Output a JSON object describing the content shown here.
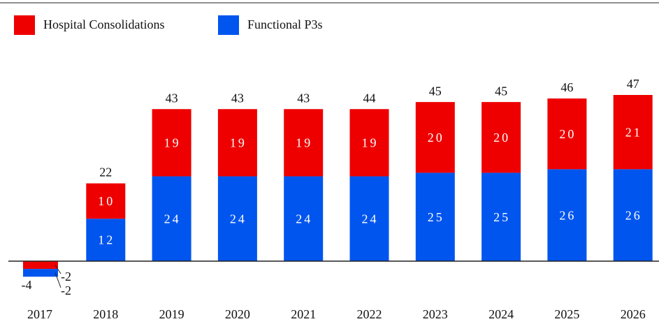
{
  "chart_data": {
    "type": "stacked-bar",
    "categories": [
      "2017",
      "2018",
      "2019",
      "2020",
      "2021",
      "2022",
      "2023",
      "2024",
      "2025",
      "2026"
    ],
    "series": [
      {
        "name": "Functional P3s",
        "color": "#0055ee",
        "values": [
          -2,
          12,
          24,
          24,
          24,
          24,
          25,
          25,
          26,
          26
        ]
      },
      {
        "name": "Hospital Consolidations",
        "color": "#ee0000",
        "values": [
          -2,
          10,
          19,
          19,
          19,
          19,
          20,
          20,
          20,
          21
        ]
      }
    ],
    "totals": [
      -4,
      22,
      43,
      43,
      43,
      44,
      45,
      45,
      46,
      47
    ],
    "legend_order": [
      1,
      0
    ]
  }
}
